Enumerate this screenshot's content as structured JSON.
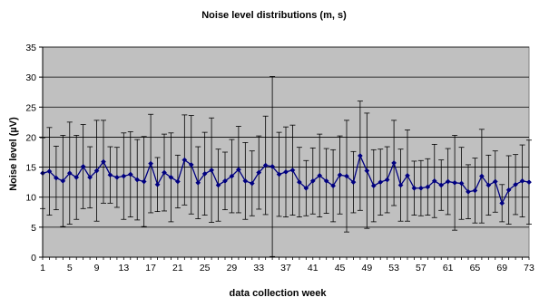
{
  "chart_data": {
    "type": "line",
    "title": "Noise level distributions (m, s)",
    "xlabel": "data collection week",
    "ylabel": "Noise level (µV)",
    "xlim": [
      1,
      73
    ],
    "ylim": [
      0,
      35
    ],
    "x_ticks": [
      "1",
      "5",
      "9",
      "13",
      "17",
      "21",
      "25",
      "29",
      "33",
      "37",
      "41",
      "45",
      "49",
      "53",
      "57",
      "61",
      "65",
      "69",
      "73"
    ],
    "y_ticks": [
      "0",
      "5",
      "10",
      "15",
      "20",
      "25",
      "30",
      "35"
    ],
    "grid": true,
    "legend": "none",
    "colors": {
      "plot_bg": "#C0C0C0",
      "series": "#000080",
      "error_bars": "#000000",
      "grid": "#000000"
    },
    "series": [
      {
        "x": [
          1,
          2,
          3,
          4,
          5,
          6,
          7,
          8,
          9,
          10,
          11,
          12,
          13,
          14,
          15,
          16,
          17,
          18,
          19,
          20,
          21,
          22,
          23,
          24,
          25,
          26,
          27,
          28,
          29,
          30,
          31,
          32,
          33,
          34,
          35,
          36,
          37,
          38,
          39,
          40,
          41,
          42,
          43,
          44,
          45,
          46,
          47,
          48,
          49,
          50,
          51,
          52,
          53,
          54,
          55,
          56,
          57,
          58,
          59,
          60,
          61,
          62,
          63,
          64,
          65,
          66,
          67,
          68,
          69,
          70,
          71,
          72,
          73
        ],
        "values": [
          14.0,
          14.3,
          13.2,
          12.7,
          14.0,
          13.3,
          15.1,
          13.3,
          14.4,
          15.9,
          13.7,
          13.3,
          13.5,
          13.8,
          12.9,
          12.6,
          15.6,
          12.1,
          14.1,
          13.3,
          12.6,
          16.2,
          15.4,
          12.4,
          13.9,
          14.5,
          12.0,
          12.7,
          13.5,
          14.6,
          12.7,
          12.3,
          14.1,
          15.3,
          15.1,
          13.8,
          14.2,
          14.5,
          12.5,
          11.5,
          12.7,
          13.6,
          12.7,
          11.9,
          13.7,
          13.5,
          12.5,
          16.9,
          14.4,
          11.9,
          12.5,
          12.9,
          15.7,
          12.0,
          13.6,
          11.5,
          11.5,
          11.7,
          12.7,
          12.0,
          12.6,
          12.4,
          12.3,
          10.9,
          11.1,
          13.5,
          12.0,
          12.6,
          9.0,
          11.2,
          12.1,
          12.7,
          12.5
        ],
        "std": [
          5.9,
          7.3,
          5.3,
          7.6,
          8.5,
          7.0,
          7.0,
          5.1,
          8.4,
          6.9,
          4.7,
          5.0,
          7.2,
          7.1,
          6.7,
          7.5,
          8.2,
          4.5,
          6.4,
          7.4,
          4.4,
          7.5,
          8.2,
          6.0,
          6.9,
          8.7,
          6.0,
          4.8,
          6.1,
          7.2,
          6.4,
          5.4,
          6.1,
          8.2,
          15.0,
          7.0,
          7.5,
          7.5,
          5.8,
          4.6,
          5.5,
          6.9,
          5.4,
          6.0,
          6.5,
          9.3,
          5.1,
          9.1,
          9.6,
          6.0,
          5.5,
          5.5,
          7.1,
          6.0,
          7.6,
          4.5,
          4.6,
          4.7,
          6.1,
          4.2,
          5.5,
          7.9,
          6.0,
          4.5,
          5.4,
          7.8,
          5.0,
          5.1,
          3.1,
          5.7,
          5.0,
          6.0,
          7.0
        ]
      }
    ]
  }
}
